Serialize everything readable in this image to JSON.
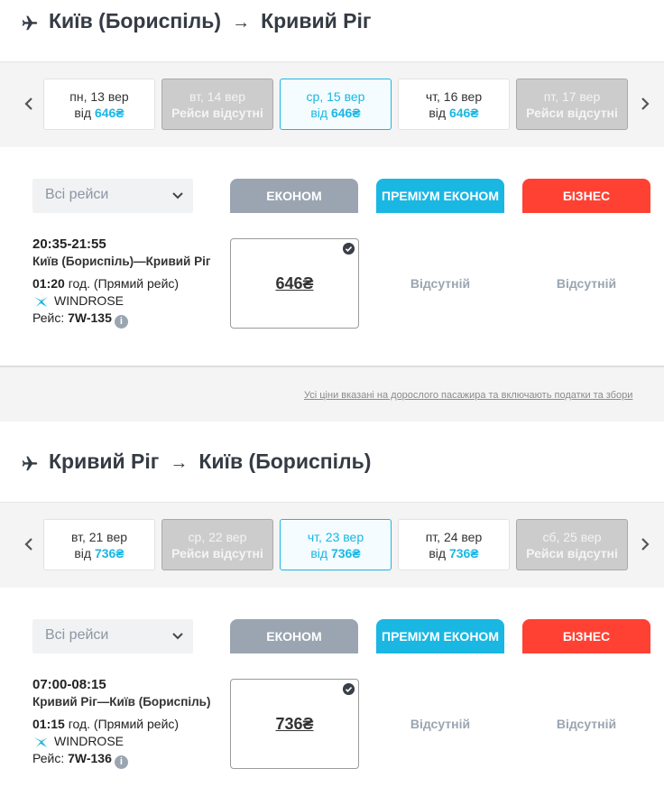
{
  "colors": {
    "economy": "#9aa5b1",
    "premium": "#1ab7e3",
    "business": "#ff4133",
    "accent": "#1ab7e3"
  },
  "segments": [
    {
      "title_from": "Київ (Бориспіль)",
      "arrow": "→",
      "title_to": "Кривий Ріг",
      "dates": [
        {
          "day": "пн, 13 вер",
          "from": "від",
          "price": "646₴",
          "state": "available"
        },
        {
          "day": "вт, 14 вер",
          "status": "Рейси відсутні",
          "state": "unavailable"
        },
        {
          "day": "ср, 15 вер",
          "from": "від",
          "price": "646₴",
          "state": "selected"
        },
        {
          "day": "чт, 16 вер",
          "from": "від",
          "price": "646₴",
          "state": "available"
        },
        {
          "day": "пт, 17 вер",
          "status": "Рейси відсутні",
          "state": "unavailable"
        }
      ],
      "filter": "Всі рейси",
      "tabs": [
        "ЕКОНОМ",
        "ПРЕМІУМ ЕКОНОМ",
        "БІЗНЕС"
      ],
      "flight": {
        "time": "20:35-21:55",
        "route": "Київ (Бориспіль)—Кривий Ріг",
        "duration": "01:20",
        "duration_suffix": "год. (Прямий рейс)",
        "airline": "WINDROSE",
        "flight_label": "Рейс:",
        "flight_no": "7W-135",
        "economy_price": "646₴",
        "premium": "Відсутній",
        "business": "Відсутній"
      }
    },
    {
      "title_from": "Кривий Ріг",
      "arrow": "→",
      "title_to": "Київ (Бориспіль)",
      "dates": [
        {
          "day": "вт, 21 вер",
          "from": "від",
          "price": "736₴",
          "state": "available"
        },
        {
          "day": "ср, 22 вер",
          "status": "Рейси відсутні",
          "state": "unavailable"
        },
        {
          "day": "чт, 23 вер",
          "from": "від",
          "price": "736₴",
          "state": "selected"
        },
        {
          "day": "пт, 24 вер",
          "from": "від",
          "price": "736₴",
          "state": "available"
        },
        {
          "day": "сб, 25 вер",
          "status": "Рейси відсутні",
          "state": "unavailable"
        }
      ],
      "filter": "Всі рейси",
      "tabs": [
        "ЕКОНОМ",
        "ПРЕМІУМ ЕКОНОМ",
        "БІЗНЕС"
      ],
      "flight": {
        "time": "07:00-08:15",
        "route": "Кривий Ріг—Київ (Бориспіль)",
        "duration": "01:15",
        "duration_suffix": "год. (Прямий рейс)",
        "airline": "WINDROSE",
        "flight_label": "Рейс:",
        "flight_no": "7W-136",
        "economy_price": "736₴",
        "premium": "Відсутній",
        "business": "Відсутній"
      }
    }
  ],
  "note": "Усі ціни вказані на дорослого пасажира та включають податки та збори"
}
